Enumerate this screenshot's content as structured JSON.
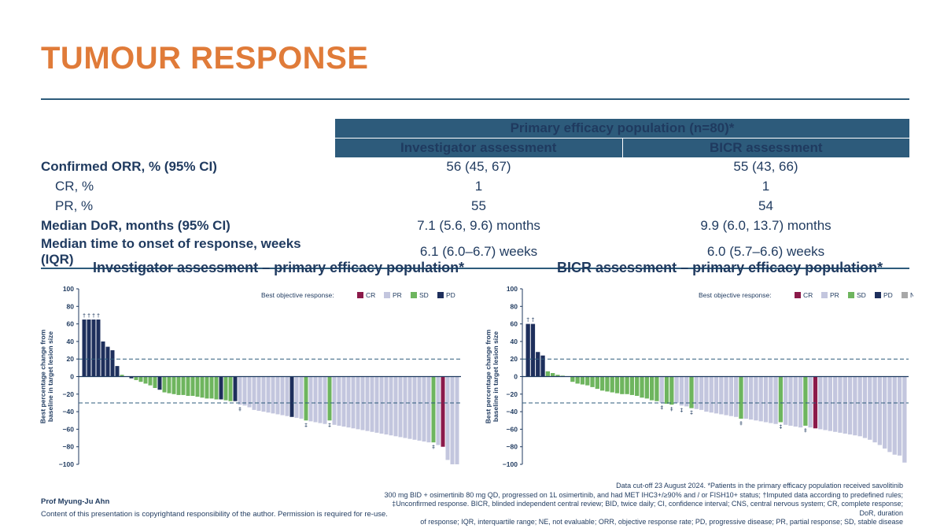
{
  "title": "TUMOUR RESPONSE",
  "table": {
    "header_main": "Primary efficacy population (n=80)*",
    "col_investigator": "Investigator assessment",
    "col_bicr": "BICR assessment",
    "rows": [
      {
        "label": "Confirmed ORR, % (95% CI)",
        "inv": "56 (45, 67)",
        "bicr": "55 (43, 66)"
      },
      {
        "label": "CR, %",
        "inv": "1",
        "bicr": "1"
      },
      {
        "label": "PR, %",
        "inv": "55",
        "bicr": "54"
      },
      {
        "label": "Median DoR, months (95% CI)",
        "inv": "7.1 (5.6, 9.6) months",
        "bicr": "9.9 (6.0, 13.7) months"
      },
      {
        "label": "Median time to onset of response, weeks (IQR)",
        "inv": "6.1 (6.0–6.7) weeks",
        "bicr": "6.0 (5.7–6.6) weeks"
      }
    ]
  },
  "colors": {
    "CR": "#8b1a4a",
    "PR": "#c3c6de",
    "SD": "#6eb55e",
    "PD": "#1e2f5c",
    "NE": "#a8a8a8",
    "accent": "#e07b39",
    "navy": "#2d5b7b"
  },
  "chart_data": [
    {
      "type": "bar",
      "title": "Investigator assessment – primary efficacy population*",
      "ylabel": "Best percentage change from baseline in target lesion size",
      "ylim": [
        -100,
        100
      ],
      "yticks": [
        "100",
        "80",
        "60",
        "40",
        "20",
        "0",
        "−20",
        "−40",
        "−60",
        "−80",
        "−100"
      ],
      "ref_lines": [
        20,
        -30
      ],
      "legend_title": "Best objective response:",
      "legend": [
        "CR",
        "PR",
        "SD",
        "PD"
      ],
      "dagger": "†",
      "ddagger": "‡",
      "bars": [
        {
          "v": 65,
          "c": "PD",
          "m": "†"
        },
        {
          "v": 65,
          "c": "PD",
          "m": "†"
        },
        {
          "v": 65,
          "c": "PD",
          "m": "†"
        },
        {
          "v": 65,
          "c": "PD",
          "m": "†"
        },
        {
          "v": 40,
          "c": "PD"
        },
        {
          "v": 34,
          "c": "PD"
        },
        {
          "v": 30,
          "c": "PD"
        },
        {
          "v": 12,
          "c": "PD"
        },
        {
          "v": 2,
          "c": "SD"
        },
        {
          "v": 0,
          "c": "SD"
        },
        {
          "v": -2,
          "c": "PD"
        },
        {
          "v": -4,
          "c": "SD"
        },
        {
          "v": -6,
          "c": "SD"
        },
        {
          "v": -8,
          "c": "SD"
        },
        {
          "v": -10,
          "c": "SD"
        },
        {
          "v": -13,
          "c": "SD"
        },
        {
          "v": -15,
          "c": "PD"
        },
        {
          "v": -18,
          "c": "SD"
        },
        {
          "v": -19,
          "c": "SD"
        },
        {
          "v": -20,
          "c": "SD"
        },
        {
          "v": -21,
          "c": "SD"
        },
        {
          "v": -21,
          "c": "SD"
        },
        {
          "v": -22,
          "c": "SD"
        },
        {
          "v": -22,
          "c": "SD"
        },
        {
          "v": -23,
          "c": "SD"
        },
        {
          "v": -24,
          "c": "SD"
        },
        {
          "v": -25,
          "c": "SD"
        },
        {
          "v": -25,
          "c": "SD"
        },
        {
          "v": -26,
          "c": "SD"
        },
        {
          "v": -26,
          "c": "PD"
        },
        {
          "v": -27,
          "c": "SD"
        },
        {
          "v": -28,
          "c": "SD"
        },
        {
          "v": -28,
          "c": "PD"
        },
        {
          "v": -32,
          "c": "PR",
          "m": "‡"
        },
        {
          "v": -33,
          "c": "PR"
        },
        {
          "v": -35,
          "c": "PR"
        },
        {
          "v": -38,
          "c": "PR"
        },
        {
          "v": -39,
          "c": "PR"
        },
        {
          "v": -40,
          "c": "PR"
        },
        {
          "v": -41,
          "c": "PR"
        },
        {
          "v": -42,
          "c": "PR"
        },
        {
          "v": -43,
          "c": "PR"
        },
        {
          "v": -44,
          "c": "PR"
        },
        {
          "v": -45,
          "c": "PR"
        },
        {
          "v": -46,
          "c": "PD"
        },
        {
          "v": -47,
          "c": "PR"
        },
        {
          "v": -48,
          "c": "PR"
        },
        {
          "v": -50,
          "c": "SD",
          "m": "‡"
        },
        {
          "v": -51,
          "c": "PR"
        },
        {
          "v": -52,
          "c": "PR"
        },
        {
          "v": -53,
          "c": "PR"
        },
        {
          "v": -54,
          "c": "PR"
        },
        {
          "v": -50,
          "c": "SD",
          "m": "‡"
        },
        {
          "v": -55,
          "c": "PR"
        },
        {
          "v": -56,
          "c": "PR"
        },
        {
          "v": -57,
          "c": "PR"
        },
        {
          "v": -58,
          "c": "PR"
        },
        {
          "v": -59,
          "c": "PR"
        },
        {
          "v": -60,
          "c": "PR"
        },
        {
          "v": -61,
          "c": "PR"
        },
        {
          "v": -62,
          "c": "PR"
        },
        {
          "v": -63,
          "c": "PR"
        },
        {
          "v": -64,
          "c": "PR"
        },
        {
          "v": -65,
          "c": "PR"
        },
        {
          "v": -66,
          "c": "PR"
        },
        {
          "v": -67,
          "c": "PR"
        },
        {
          "v": -68,
          "c": "PR"
        },
        {
          "v": -69,
          "c": "PR"
        },
        {
          "v": -70,
          "c": "PR"
        },
        {
          "v": -71,
          "c": "PR"
        },
        {
          "v": -72,
          "c": "PR"
        },
        {
          "v": -73,
          "c": "PR"
        },
        {
          "v": -74,
          "c": "PR"
        },
        {
          "v": -75,
          "c": "PR"
        },
        {
          "v": -75,
          "c": "SD",
          "m": "‡"
        },
        {
          "v": -78,
          "c": "PR"
        },
        {
          "v": -80,
          "c": "CR"
        },
        {
          "v": -95,
          "c": "PR"
        },
        {
          "v": -100,
          "c": "PR"
        },
        {
          "v": -100,
          "c": "PR"
        }
      ]
    },
    {
      "type": "bar",
      "title": "BICR assessment – primary efficacy population*",
      "ylabel": "Best percentage change from baseline in target lesion size",
      "ylim": [
        -100,
        100
      ],
      "yticks": [
        "100",
        "80",
        "60",
        "40",
        "20",
        "0",
        "−20",
        "−40",
        "−60",
        "−80",
        "−100"
      ],
      "ref_lines": [
        20,
        -30
      ],
      "legend_title": "Best objective response:",
      "legend": [
        "CR",
        "PR",
        "SD",
        "PD",
        "NE"
      ],
      "dagger": "†",
      "ddagger": "‡",
      "bars": [
        {
          "v": 60,
          "c": "PD",
          "m": "†"
        },
        {
          "v": 60,
          "c": "PD",
          "m": "†"
        },
        {
          "v": 28,
          "c": "PD"
        },
        {
          "v": 24,
          "c": "PD"
        },
        {
          "v": 6,
          "c": "SD"
        },
        {
          "v": 4,
          "c": "SD"
        },
        {
          "v": 2,
          "c": "SD"
        },
        {
          "v": 1,
          "c": "SD"
        },
        {
          "v": 0,
          "c": "SD"
        },
        {
          "v": -6,
          "c": "SD"
        },
        {
          "v": -8,
          "c": "SD"
        },
        {
          "v": -9,
          "c": "SD"
        },
        {
          "v": -10,
          "c": "SD"
        },
        {
          "v": -12,
          "c": "SD"
        },
        {
          "v": -14,
          "c": "SD"
        },
        {
          "v": -16,
          "c": "SD"
        },
        {
          "v": -17,
          "c": "SD"
        },
        {
          "v": -18,
          "c": "SD"
        },
        {
          "v": -19,
          "c": "SD"
        },
        {
          "v": -20,
          "c": "SD"
        },
        {
          "v": -20,
          "c": "SD"
        },
        {
          "v": -21,
          "c": "SD"
        },
        {
          "v": -22,
          "c": "SD"
        },
        {
          "v": -24,
          "c": "SD"
        },
        {
          "v": -25,
          "c": "SD"
        },
        {
          "v": -27,
          "c": "SD"
        },
        {
          "v": -28,
          "c": "SD"
        },
        {
          "v": -30,
          "c": "PR",
          "m": "‡"
        },
        {
          "v": -31,
          "c": "SD"
        },
        {
          "v": -32,
          "c": "SD",
          "m": "‡"
        },
        {
          "v": -30,
          "c": "PR"
        },
        {
          "v": -33,
          "c": "PR",
          "m": "‡"
        },
        {
          "v": -34,
          "c": "PR"
        },
        {
          "v": -36,
          "c": "SD",
          "m": "‡"
        },
        {
          "v": -37,
          "c": "PR"
        },
        {
          "v": -38,
          "c": "PR"
        },
        {
          "v": -40,
          "c": "PR"
        },
        {
          "v": -41,
          "c": "PR"
        },
        {
          "v": -42,
          "c": "PR"
        },
        {
          "v": -43,
          "c": "PR"
        },
        {
          "v": -44,
          "c": "PR"
        },
        {
          "v": -45,
          "c": "PR"
        },
        {
          "v": -46,
          "c": "PR"
        },
        {
          "v": -48,
          "c": "SD",
          "m": "‡"
        },
        {
          "v": -48,
          "c": "PR"
        },
        {
          "v": -49,
          "c": "PR"
        },
        {
          "v": -50,
          "c": "PR"
        },
        {
          "v": -51,
          "c": "PR"
        },
        {
          "v": -52,
          "c": "PR"
        },
        {
          "v": -53,
          "c": "PR"
        },
        {
          "v": -54,
          "c": "PR"
        },
        {
          "v": -52,
          "c": "SD",
          "m": "‡"
        },
        {
          "v": -55,
          "c": "PR"
        },
        {
          "v": -56,
          "c": "PR"
        },
        {
          "v": -57,
          "c": "PR"
        },
        {
          "v": -58,
          "c": "PR"
        },
        {
          "v": -56,
          "c": "SD",
          "m": "‡"
        },
        {
          "v": -58,
          "c": "PR"
        },
        {
          "v": -59,
          "c": "CR"
        },
        {
          "v": -60,
          "c": "PR"
        },
        {
          "v": -61,
          "c": "PR"
        },
        {
          "v": -62,
          "c": "PR"
        },
        {
          "v": -63,
          "c": "PR"
        },
        {
          "v": -64,
          "c": "PR"
        },
        {
          "v": -65,
          "c": "PR"
        },
        {
          "v": -66,
          "c": "PR"
        },
        {
          "v": -67,
          "c": "PR"
        },
        {
          "v": -68,
          "c": "PR"
        },
        {
          "v": -70,
          "c": "PR"
        },
        {
          "v": -72,
          "c": "PR"
        },
        {
          "v": -75,
          "c": "PR"
        },
        {
          "v": -78,
          "c": "PR"
        },
        {
          "v": -82,
          "c": "PR"
        },
        {
          "v": -86,
          "c": "PR"
        },
        {
          "v": -89,
          "c": "PR"
        },
        {
          "v": -90,
          "c": "PR"
        },
        {
          "v": -98,
          "c": "PR"
        }
      ]
    }
  ],
  "footer": {
    "presenter": "Prof Myung-Ju Ahn",
    "copyright": "Content of this presentation is copyrightand responsibility of the author. Permission is required for re-use.",
    "footnote_1": "Data cut-off 23 August 2024. *Patients in the primary efficacy population received savolitinib",
    "footnote_2": "300 mg BID + osimertinib 80 mg QD, progressed on 1L osimertinib, and had MET IHC3+/≥90% and / or FISH10+ status; †Imputed data according to predefined rules;",
    "footnote_3": "‡Unconfirmed response. BICR, blinded independent central review; BID, twice daily; CI, confidence interval; CNS, central nervous system; CR, complete response; DoR, duration",
    "footnote_4": "of response; IQR, interquartile range; NE, not evaluable; ORR, objective response rate; PD, progressive disease; PR, partial response; SD, stable disease"
  }
}
